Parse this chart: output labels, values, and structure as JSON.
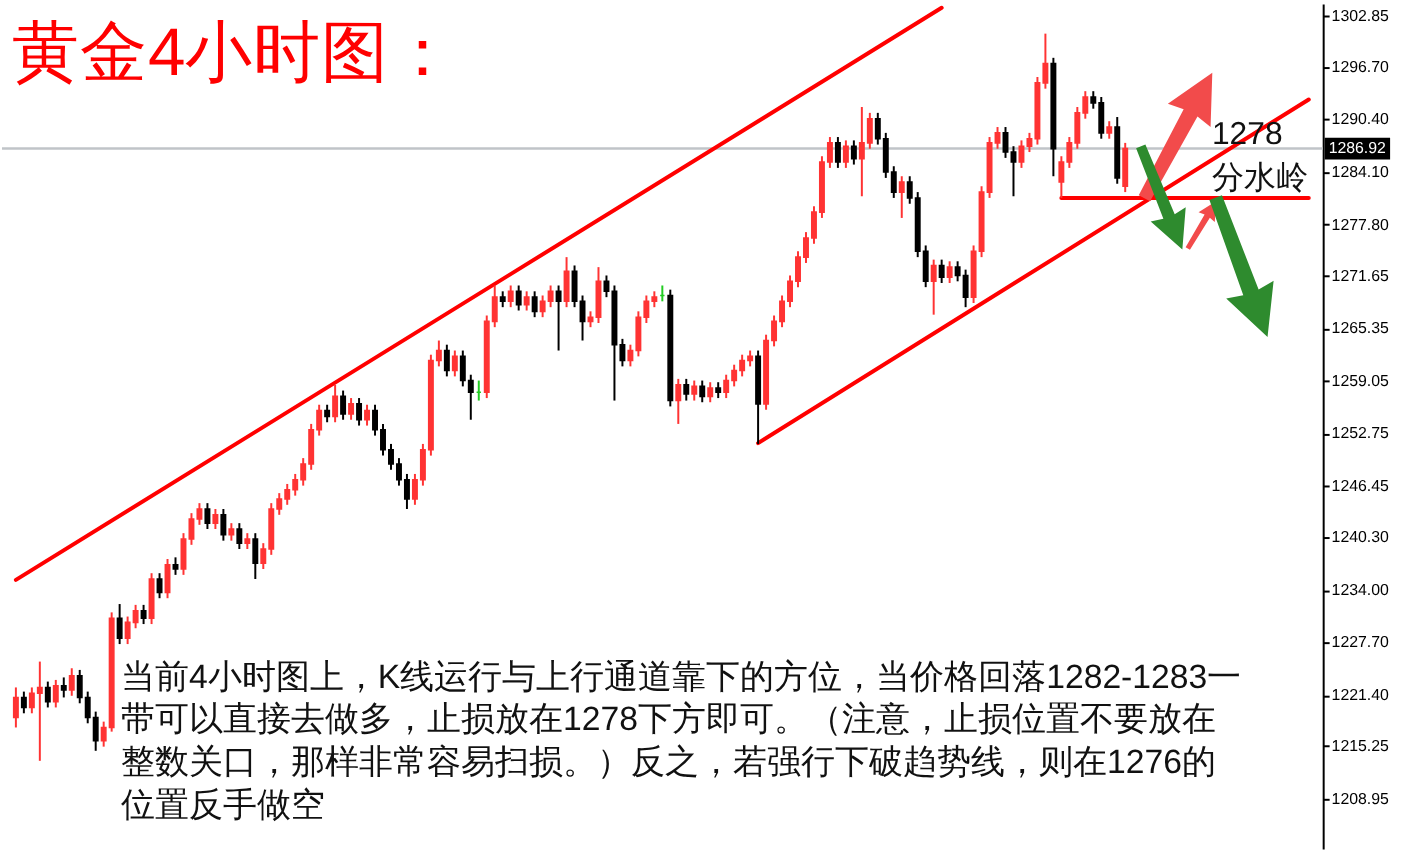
{
  "chart_data": {
    "type": "candlestick",
    "title": "黄金4小时图：",
    "categories": [
      null,
      null,
      null,
      null,
      null,
      null,
      null,
      null,
      null,
      null,
      null,
      null,
      null,
      null,
      null,
      null,
      null,
      null,
      null,
      null,
      null,
      null,
      null,
      null,
      null,
      null,
      null,
      null,
      null,
      null,
      null,
      null,
      null,
      null,
      null,
      null,
      null,
      null,
      null,
      null,
      null,
      null,
      null,
      null,
      null,
      null,
      null,
      null,
      null,
      null,
      null,
      null,
      null,
      null,
      null,
      null,
      null,
      null,
      null,
      null,
      null,
      null,
      null,
      null,
      null,
      null,
      null,
      null,
      null,
      null,
      null,
      null,
      null,
      null,
      null,
      null,
      null,
      null,
      null,
      null,
      null,
      null,
      null,
      null,
      null,
      null,
      null,
      null,
      null,
      null,
      null,
      null,
      null,
      null,
      null,
      null,
      null,
      null,
      null,
      null,
      null,
      null,
      null,
      null,
      null,
      null,
      null,
      null,
      null,
      null,
      null,
      null,
      null,
      null,
      null,
      null,
      null,
      null,
      null,
      null,
      null,
      null,
      null,
      null,
      null,
      null,
      null,
      null,
      null,
      null,
      null,
      null,
      null,
      null,
      null,
      null,
      null,
      null,
      null,
      null,
      null,
      null,
      null,
      null,
      null,
      null,
      null,
      null,
      null,
      null,
      null,
      null,
      null,
      null,
      null,
      null,
      null,
      null,
      null,
      null,
      null,
      null,
      null
    ],
    "ohlc": [
      [
        1218.7,
        1222.3,
        1217.5,
        1221.1
      ],
      [
        1221.1,
        1221.8,
        1219.2,
        1219.9
      ],
      [
        1219.9,
        1222.3,
        1219.2,
        1221.6
      ],
      [
        1221.6,
        1225.4,
        1213.5,
        1222.3
      ],
      [
        1222.3,
        1223.0,
        1219.9,
        1220.6
      ],
      [
        1220.6,
        1223.2,
        1219.9,
        1222.5
      ],
      [
        1222.5,
        1223.5,
        1221.1,
        1222.0
      ],
      [
        1222.0,
        1224.6,
        1221.3,
        1223.7
      ],
      [
        1223.7,
        1224.4,
        1220.4,
        1221.1
      ],
      [
        1221.1,
        1221.8,
        1218.0,
        1218.7
      ],
      [
        1218.7,
        1219.4,
        1214.7,
        1215.9
      ],
      [
        1215.9,
        1218.2,
        1215.2,
        1217.5
      ],
      [
        1217.5,
        1231.3,
        1217.0,
        1230.6
      ],
      [
        1230.6,
        1232.3,
        1227.5,
        1228.2
      ],
      [
        1228.2,
        1230.8,
        1227.5,
        1230.1
      ],
      [
        1230.1,
        1232.2,
        1229.4,
        1231.5
      ],
      [
        1231.5,
        1232.2,
        1229.9,
        1230.6
      ],
      [
        1230.6,
        1236.0,
        1229.9,
        1235.3
      ],
      [
        1235.3,
        1236.0,
        1233.0,
        1233.7
      ],
      [
        1233.7,
        1237.7,
        1233.0,
        1237.0
      ],
      [
        1237.0,
        1237.9,
        1235.8,
        1236.5
      ],
      [
        1236.5,
        1240.8,
        1235.8,
        1240.1
      ],
      [
        1240.1,
        1243.2,
        1239.4,
        1242.5
      ],
      [
        1242.5,
        1244.4,
        1241.8,
        1243.7
      ],
      [
        1243.7,
        1244.4,
        1241.3,
        1242.0
      ],
      [
        1242.0,
        1243.7,
        1241.3,
        1243.0
      ],
      [
        1243.0,
        1243.7,
        1239.9,
        1240.6
      ],
      [
        1240.6,
        1242.0,
        1239.9,
        1241.3
      ],
      [
        1241.3,
        1242.0,
        1238.9,
        1239.6
      ],
      [
        1239.6,
        1240.8,
        1238.9,
        1240.1
      ],
      [
        1240.1,
        1240.8,
        1235.3,
        1237.2
      ],
      [
        1237.2,
        1239.6,
        1236.5,
        1238.9
      ],
      [
        1238.9,
        1244.4,
        1238.2,
        1243.7
      ],
      [
        1243.7,
        1245.6,
        1243.0,
        1244.9
      ],
      [
        1244.9,
        1246.7,
        1244.2,
        1246.0
      ],
      [
        1246.0,
        1247.9,
        1245.3,
        1247.2
      ],
      [
        1247.2,
        1249.8,
        1246.5,
        1249.1
      ],
      [
        1249.1,
        1253.9,
        1248.4,
        1253.2
      ],
      [
        1253.2,
        1256.2,
        1252.5,
        1255.5
      ],
      [
        1255.5,
        1256.2,
        1254.1,
        1254.8
      ],
      [
        1254.8,
        1258.6,
        1254.1,
        1257.2
      ],
      [
        1257.2,
        1257.9,
        1254.4,
        1255.1
      ],
      [
        1255.1,
        1257.0,
        1254.4,
        1256.3
      ],
      [
        1256.3,
        1257.0,
        1253.7,
        1254.4
      ],
      [
        1254.4,
        1256.2,
        1253.7,
        1255.5
      ],
      [
        1255.5,
        1256.2,
        1252.5,
        1253.2
      ],
      [
        1253.2,
        1253.9,
        1250.1,
        1250.8
      ],
      [
        1250.8,
        1251.5,
        1248.4,
        1249.1
      ],
      [
        1249.1,
        1249.8,
        1246.5,
        1247.2
      ],
      [
        1247.2,
        1247.9,
        1243.7,
        1244.9
      ],
      [
        1244.9,
        1247.9,
        1244.2,
        1247.2
      ],
      [
        1247.2,
        1251.5,
        1246.5,
        1250.8
      ],
      [
        1250.8,
        1262.2,
        1250.1,
        1261.5
      ],
      [
        1261.5,
        1263.9,
        1260.8,
        1262.7
      ],
      [
        1262.7,
        1263.4,
        1259.6,
        1260.3
      ],
      [
        1260.3,
        1262.7,
        1259.6,
        1262.0
      ],
      [
        1262.0,
        1262.7,
        1258.4,
        1259.1
      ],
      [
        1259.1,
        1259.8,
        1254.4,
        1257.7
      ],
      [
        1257.7,
        1259.1,
        1256.7,
        1257.7
      ],
      [
        1257.7,
        1266.9,
        1257.0,
        1266.2
      ],
      [
        1266.2,
        1270.5,
        1265.5,
        1269.1
      ],
      [
        1269.1,
        1269.8,
        1267.9,
        1268.6
      ],
      [
        1268.6,
        1270.5,
        1267.9,
        1269.8
      ],
      [
        1269.8,
        1270.5,
        1267.5,
        1268.2
      ],
      [
        1268.2,
        1269.8,
        1267.5,
        1269.1
      ],
      [
        1269.1,
        1269.8,
        1266.7,
        1267.4
      ],
      [
        1267.4,
        1269.3,
        1266.7,
        1268.6
      ],
      [
        1268.6,
        1270.5,
        1267.9,
        1269.8
      ],
      [
        1269.8,
        1270.5,
        1262.7,
        1268.6
      ],
      [
        1268.6,
        1273.9,
        1267.9,
        1272.2
      ],
      [
        1272.2,
        1272.9,
        1267.9,
        1268.6
      ],
      [
        1268.6,
        1269.3,
        1263.9,
        1266.2
      ],
      [
        1266.2,
        1267.4,
        1265.5,
        1266.7
      ],
      [
        1266.7,
        1272.7,
        1266.0,
        1271.0
      ],
      [
        1271.0,
        1271.7,
        1269.1,
        1269.8
      ],
      [
        1269.8,
        1270.5,
        1256.7,
        1263.4
      ],
      [
        1263.4,
        1264.1,
        1260.8,
        1261.5
      ],
      [
        1261.5,
        1263.4,
        1260.8,
        1262.7
      ],
      [
        1262.7,
        1267.4,
        1262.0,
        1266.7
      ],
      [
        1266.7,
        1269.3,
        1266.0,
        1268.6
      ],
      [
        1268.6,
        1269.8,
        1267.9,
        1269.1
      ],
      [
        1269.3,
        1270.5,
        1268.6,
        1269.3
      ],
      [
        1269.3,
        1270.0,
        1256.0,
        1256.7
      ],
      [
        1256.7,
        1259.3,
        1253.9,
        1258.6
      ],
      [
        1258.6,
        1259.3,
        1256.7,
        1257.5
      ],
      [
        1257.5,
        1259.1,
        1256.7,
        1258.4
      ],
      [
        1258.4,
        1259.1,
        1256.5,
        1257.2
      ],
      [
        1257.2,
        1258.9,
        1256.5,
        1258.2
      ],
      [
        1258.2,
        1258.9,
        1257.0,
        1257.7
      ],
      [
        1257.7,
        1259.8,
        1257.0,
        1259.1
      ],
      [
        1259.1,
        1261.0,
        1258.4,
        1260.3
      ],
      [
        1260.3,
        1262.2,
        1259.6,
        1261.5
      ],
      [
        1261.5,
        1262.7,
        1260.8,
        1262.0
      ],
      [
        1262.0,
        1262.7,
        1251.5,
        1256.3
      ],
      [
        1256.3,
        1264.6,
        1255.6,
        1263.9
      ],
      [
        1263.9,
        1266.9,
        1263.2,
        1266.2
      ],
      [
        1266.2,
        1269.3,
        1265.5,
        1268.6
      ],
      [
        1268.6,
        1271.7,
        1267.9,
        1271.0
      ],
      [
        1271.0,
        1274.6,
        1270.3,
        1273.9
      ],
      [
        1273.9,
        1276.9,
        1273.2,
        1276.2
      ],
      [
        1276.2,
        1280.0,
        1275.5,
        1279.3
      ],
      [
        1279.3,
        1286.0,
        1278.6,
        1285.3
      ],
      [
        1285.3,
        1288.3,
        1284.6,
        1287.6
      ],
      [
        1287.6,
        1288.3,
        1284.6,
        1285.3
      ],
      [
        1285.3,
        1287.9,
        1284.6,
        1287.2
      ],
      [
        1287.2,
        1287.9,
        1285.0,
        1285.7
      ],
      [
        1285.7,
        1291.9,
        1281.2,
        1287.6
      ],
      [
        1287.6,
        1291.2,
        1286.9,
        1290.5
      ],
      [
        1290.5,
        1291.2,
        1287.4,
        1288.1
      ],
      [
        1288.1,
        1288.8,
        1283.4,
        1284.1
      ],
      [
        1284.1,
        1284.8,
        1281.0,
        1281.7
      ],
      [
        1281.7,
        1283.6,
        1278.6,
        1282.9
      ],
      [
        1282.9,
        1283.6,
        1280.3,
        1281.0
      ],
      [
        1281.0,
        1281.7,
        1273.9,
        1274.6
      ],
      [
        1274.6,
        1275.3,
        1270.3,
        1271.0
      ],
      [
        1271.0,
        1273.6,
        1267.0,
        1272.9
      ],
      [
        1272.9,
        1273.6,
        1270.8,
        1271.5
      ],
      [
        1271.5,
        1273.4,
        1270.8,
        1272.7
      ],
      [
        1272.7,
        1273.4,
        1271.0,
        1271.7
      ],
      [
        1271.7,
        1272.4,
        1267.9,
        1269.1
      ],
      [
        1269.1,
        1275.3,
        1268.4,
        1274.6
      ],
      [
        1274.6,
        1282.4,
        1273.9,
        1281.7
      ],
      [
        1281.7,
        1288.3,
        1281.0,
        1287.6
      ],
      [
        1287.6,
        1289.5,
        1286.9,
        1288.8
      ],
      [
        1288.8,
        1289.5,
        1285.8,
        1286.5
      ],
      [
        1286.5,
        1287.2,
        1281.2,
        1285.3
      ],
      [
        1285.3,
        1287.9,
        1284.6,
        1287.2
      ],
      [
        1287.2,
        1288.8,
        1286.5,
        1288.1
      ],
      [
        1288.1,
        1295.5,
        1287.4,
        1294.8
      ],
      [
        1294.8,
        1300.7,
        1294.1,
        1297.1
      ],
      [
        1297.1,
        1297.8,
        1283.6,
        1286.9
      ],
      [
        1282.9,
        1286.0,
        1281.0,
        1285.3
      ],
      [
        1285.3,
        1288.3,
        1284.6,
        1287.6
      ],
      [
        1287.6,
        1291.9,
        1286.9,
        1291.2
      ],
      [
        1291.2,
        1293.8,
        1290.5,
        1293.1
      ],
      [
        1293.1,
        1293.8,
        1291.7,
        1292.4
      ],
      [
        1292.4,
        1293.1,
        1288.1,
        1288.8
      ],
      [
        1288.8,
        1290.2,
        1288.1,
        1289.5
      ],
      [
        1289.5,
        1290.7,
        1282.7,
        1283.4
      ],
      [
        1282.4,
        1287.6,
        1281.7,
        1286.92
      ],
      null,
      null,
      null,
      null,
      null,
      null,
      null,
      null,
      null,
      null,
      null,
      null,
      null,
      null,
      null,
      null,
      null,
      null,
      null,
      null,
      null,
      null,
      null
    ],
    "colors": [
      "#ff3333",
      "#000000",
      "#ff3333",
      "#ff3333",
      "#000000",
      "#ff3333",
      "#000000",
      "#ff3333",
      "#000000",
      "#000000",
      "#000000",
      "#ff3333",
      "#ff3333",
      "#000000",
      "#ff3333",
      "#ff3333",
      "#000000",
      "#ff3333",
      "#000000",
      "#ff3333",
      "#000000",
      "#ff3333",
      "#ff3333",
      "#ff3333",
      "#000000",
      "#ff3333",
      "#000000",
      "#ff3333",
      "#000000",
      "#ff3333",
      "#000000",
      "#ff3333",
      "#ff3333",
      "#ff3333",
      "#ff3333",
      "#ff3333",
      "#ff3333",
      "#ff3333",
      "#ff3333",
      "#000000",
      "#ff3333",
      "#000000",
      "#ff3333",
      "#000000",
      "#ff3333",
      "#000000",
      "#000000",
      "#000000",
      "#000000",
      "#000000",
      "#ff3333",
      "#ff3333",
      "#ff3333",
      "#ff3333",
      "#000000",
      "#ff3333",
      "#000000",
      "#000000",
      "#22cc22",
      "#ff3333",
      "#ff3333",
      "#000000",
      "#ff3333",
      "#000000",
      "#ff3333",
      "#000000",
      "#ff3333",
      "#ff3333",
      "#000000",
      "#ff3333",
      "#000000",
      "#000000",
      "#ff3333",
      "#ff3333",
      "#000000",
      "#000000",
      "#000000",
      "#ff3333",
      "#ff3333",
      "#ff3333",
      "#ff3333",
      "#22cc22",
      "#000000",
      "#ff3333",
      "#000000",
      "#ff3333",
      "#000000",
      "#ff3333",
      "#000000",
      "#ff3333",
      "#ff3333",
      "#ff3333",
      "#ff3333",
      "#000000",
      "#ff3333",
      "#ff3333",
      "#ff3333",
      "#ff3333",
      "#ff3333",
      "#ff3333",
      "#ff3333",
      "#ff3333",
      "#ff3333",
      "#000000",
      "#ff3333",
      "#000000",
      "#ff3333",
      "#ff3333",
      "#000000",
      "#000000",
      "#000000",
      "#ff3333",
      "#000000",
      "#000000",
      "#000000",
      "#ff3333",
      "#000000",
      "#ff3333",
      "#000000",
      "#000000",
      "#ff3333",
      "#ff3333",
      "#ff3333",
      "#ff3333",
      "#000000",
      "#000000",
      "#ff3333",
      "#ff3333",
      "#ff3333",
      "#ff3333",
      "#000000",
      "#ff3333",
      "#ff3333",
      "#ff3333",
      "#ff3333",
      "#000000",
      "#000000",
      "#ff3333",
      "#000000",
      "#ff3333",
      null,
      null,
      null,
      null,
      null,
      null,
      null,
      null,
      null,
      null,
      null,
      null,
      null,
      null,
      null,
      null,
      null,
      null,
      null,
      null,
      null,
      null,
      null
    ],
    "series": [
      {
        "type": "line",
        "color": "#ff0000",
        "values": [
          1235.2,
          null,
          null,
          null,
          null,
          null,
          null,
          null,
          null,
          null,
          null,
          null,
          null,
          null,
          null,
          null,
          null,
          null,
          null,
          null,
          null,
          null,
          null,
          null,
          null,
          null,
          null,
          null,
          null,
          null,
          null,
          null,
          null,
          null,
          null,
          null,
          null,
          null,
          null,
          null,
          null,
          null,
          null,
          null,
          null,
          null,
          null,
          null,
          null,
          null,
          null,
          null,
          null,
          null,
          null,
          null,
          null,
          null,
          null,
          null,
          null,
          null,
          null,
          null,
          null,
          null,
          null,
          null,
          null,
          null,
          null,
          null,
          null,
          null,
          null,
          null,
          null,
          null,
          null,
          null,
          null,
          null,
          null,
          null,
          null,
          null,
          null,
          null,
          null,
          null,
          null,
          null,
          null,
          null,
          null,
          null,
          null,
          null,
          null,
          null,
          null,
          null,
          null,
          null,
          null,
          null,
          null,
          null,
          null,
          null,
          null,
          null,
          null,
          null,
          null,
          null,
          1303.8,
          null,
          null,
          null,
          null,
          null,
          null,
          null,
          null,
          null,
          null,
          null,
          null,
          null,
          null,
          null,
          null,
          null,
          null,
          null,
          null,
          null,
          null,
          null,
          null,
          null,
          null,
          null,
          null,
          null,
          null,
          null,
          null,
          null,
          null,
          null,
          null,
          null,
          null,
          null,
          null,
          null,
          null,
          null,
          null,
          null,
          null
        ]
      },
      {
        "type": "line",
        "color": "#ff0000",
        "values": [
          null,
          null,
          null,
          null,
          null,
          null,
          null,
          null,
          null,
          null,
          null,
          null,
          null,
          null,
          null,
          null,
          null,
          null,
          null,
          null,
          null,
          null,
          null,
          null,
          null,
          null,
          null,
          null,
          null,
          null,
          null,
          null,
          null,
          null,
          null,
          null,
          null,
          null,
          null,
          null,
          null,
          null,
          null,
          null,
          null,
          null,
          null,
          null,
          null,
          null,
          null,
          null,
          null,
          null,
          null,
          null,
          null,
          null,
          null,
          null,
          null,
          null,
          null,
          null,
          null,
          null,
          null,
          null,
          null,
          null,
          null,
          null,
          null,
          null,
          null,
          null,
          null,
          null,
          null,
          null,
          null,
          null,
          null,
          null,
          null,
          null,
          null,
          null,
          null,
          null,
          null,
          null,
          null,
          1251.6,
          null,
          null,
          null,
          null,
          null,
          null,
          null,
          null,
          null,
          null,
          null,
          null,
          null,
          null,
          null,
          null,
          null,
          null,
          null,
          null,
          null,
          null,
          null,
          null,
          null,
          null,
          null,
          null,
          null,
          null,
          null,
          null,
          null,
          null,
          null,
          null,
          null,
          null,
          null,
          null,
          null,
          null,
          null,
          null,
          null,
          null,
          null,
          null,
          null,
          null,
          null,
          null,
          null,
          null,
          null,
          null,
          null,
          null,
          null,
          null,
          null,
          null,
          null,
          null,
          null,
          null,
          null,
          null,
          1292.8
        ]
      },
      {
        "type": "line",
        "color": "#ff0000",
        "values": [
          null,
          null,
          null,
          null,
          null,
          null,
          null,
          null,
          null,
          null,
          null,
          null,
          null,
          null,
          null,
          null,
          null,
          null,
          null,
          null,
          null,
          null,
          null,
          null,
          null,
          null,
          null,
          null,
          null,
          null,
          null,
          null,
          null,
          null,
          null,
          null,
          null,
          null,
          null,
          null,
          null,
          null,
          null,
          null,
          null,
          null,
          null,
          null,
          null,
          null,
          null,
          null,
          null,
          null,
          null,
          null,
          null,
          null,
          null,
          null,
          null,
          null,
          null,
          null,
          null,
          null,
          null,
          null,
          null,
          null,
          null,
          null,
          null,
          null,
          null,
          null,
          null,
          null,
          null,
          null,
          null,
          null,
          null,
          null,
          null,
          null,
          null,
          null,
          null,
          null,
          null,
          null,
          null,
          null,
          null,
          null,
          null,
          null,
          null,
          null,
          null,
          null,
          null,
          null,
          null,
          null,
          null,
          null,
          null,
          null,
          null,
          null,
          null,
          null,
          null,
          null,
          null,
          null,
          null,
          null,
          null,
          null,
          null,
          null,
          null,
          null,
          null,
          null,
          null,
          null,
          null,
          1281.0,
          null,
          null,
          null,
          null,
          null,
          null,
          null,
          null,
          null,
          null,
          null,
          null,
          null,
          null,
          null,
          null,
          null,
          null,
          null,
          null,
          null,
          null,
          null,
          null,
          null,
          null,
          null,
          null,
          null,
          null,
          1281.0
        ]
      }
    ],
    "ylim": [
      1203.0,
      1304.3
    ],
    "yticks": [
      1302.85,
      {
        "value": 1296.7,
        "label": "1296.70"
      },
      {
        "value": 1290.4,
        "label": "1290.40"
      },
      {
        "value": 1284.1,
        "label": "1284.10"
      },
      {
        "value": 1277.8,
        "label": "1277.80"
      },
      1271.65,
      1265.35,
      1259.05,
      1252.75,
      1246.45,
      {
        "value": 1240.3,
        "label": "1240.30"
      },
      {
        "value": 1234.0,
        "label": "1234.00"
      },
      {
        "value": 1227.7,
        "label": "1227.70"
      },
      {
        "value": 1221.4,
        "label": "1221.40"
      },
      1215.25,
      1208.95
    ],
    "tick_labels": "y",
    "ref_lines": [
      {
        "axis": "y",
        "value": 1286.92,
        "label": "1286.92",
        "color": "#c0c4c8"
      }
    ],
    "annotations": [
      "1278 分水岭",
      "当前4小时图上，K线运行与上行通道靠下的方位，当价格回落1282-1283一带可以直接去做多，止损放在1278下方即可。（注意，止损位置不要放在整数关口，那样非常容易扫损。）反之，若强行下破趋势线，则在1276的位置反手做空"
    ]
  }
}
